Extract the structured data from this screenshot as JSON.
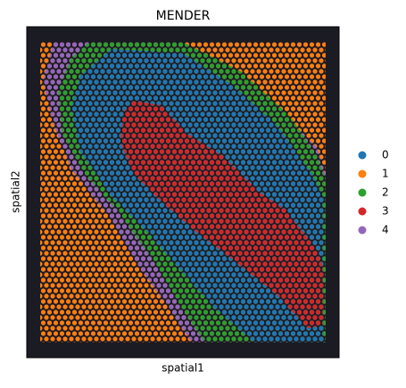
{
  "chart_data": {
    "type": "spatial-scatter",
    "title": "MENDER",
    "xlabel": "spatial1",
    "ylabel": "spatial2",
    "xlim": [
      0,
      100
    ],
    "ylim": [
      0,
      100
    ],
    "legend": "right",
    "series": [
      {
        "name": "1",
        "color": "#ff7f0e",
        "x": [
          4.3,
          95.7,
          95.7,
          4.3
        ],
        "y": [
          95.4,
          95.4,
          4.6,
          4.6
        ]
      },
      {
        "name": "4",
        "color": "#9467bd",
        "x": [
          8.6,
          47.1,
          57.1,
          77.1,
          92.9,
          95.7,
          95.7,
          52.9,
          44.3,
          34.3,
          25.7,
          14.3,
          8.6,
          5.1
        ],
        "y": [
          95.4,
          95.4,
          92.0,
          78.4,
          63.6,
          55.5,
          4.6,
          4.6,
          16.4,
          29.9,
          43.4,
          56.9,
          70.4,
          83.8
        ]
      },
      {
        "name": "2",
        "color": "#2ca02c",
        "x": [
          20.0,
          50.0,
          68.6,
          84.3,
          92.9,
          95.7,
          95.7,
          57.1,
          48.6,
          40.0,
          30.0,
          18.6,
          11.4,
          10.0,
          14.3
        ],
        "y": [
          95.4,
          95.4,
          86.5,
          73.0,
          60.9,
          54.0,
          4.6,
          4.6,
          16.4,
          29.9,
          43.4,
          55.5,
          67.7,
          81.1,
          90.6
        ]
      },
      {
        "name": "0",
        "color": "#1f77b4",
        "x": [
          27.1,
          50.0,
          65.7,
          80.0,
          91.4,
          94.9,
          94.9,
          72.9,
          60.0,
          48.6,
          38.6,
          27.1,
          17.1,
          14.3,
          17.1
        ],
        "y": [
          93.3,
          92.0,
          82.5,
          70.4,
          55.5,
          48.8,
          4.6,
          4.6,
          15.1,
          27.2,
          38.0,
          48.8,
          62.3,
          75.7,
          85.2
        ]
      },
      {
        "name": "3",
        "color": "#d62728",
        "x": [
          34.3,
          42.9,
          51.4,
          62.9,
          74.3,
          82.9,
          92.9,
          94.9,
          94.9,
          90.0,
          80.0,
          65.7,
          54.3,
          42.9,
          34.3,
          30.0,
          30.9
        ],
        "y": [
          77.6,
          76.3,
          67.7,
          60.9,
          50.1,
          44.7,
          32.6,
          27.2,
          9.7,
          8.9,
          19.1,
          29.9,
          38.0,
          47.4,
          55.5,
          65.0,
          74.4
        ]
      }
    ]
  }
}
